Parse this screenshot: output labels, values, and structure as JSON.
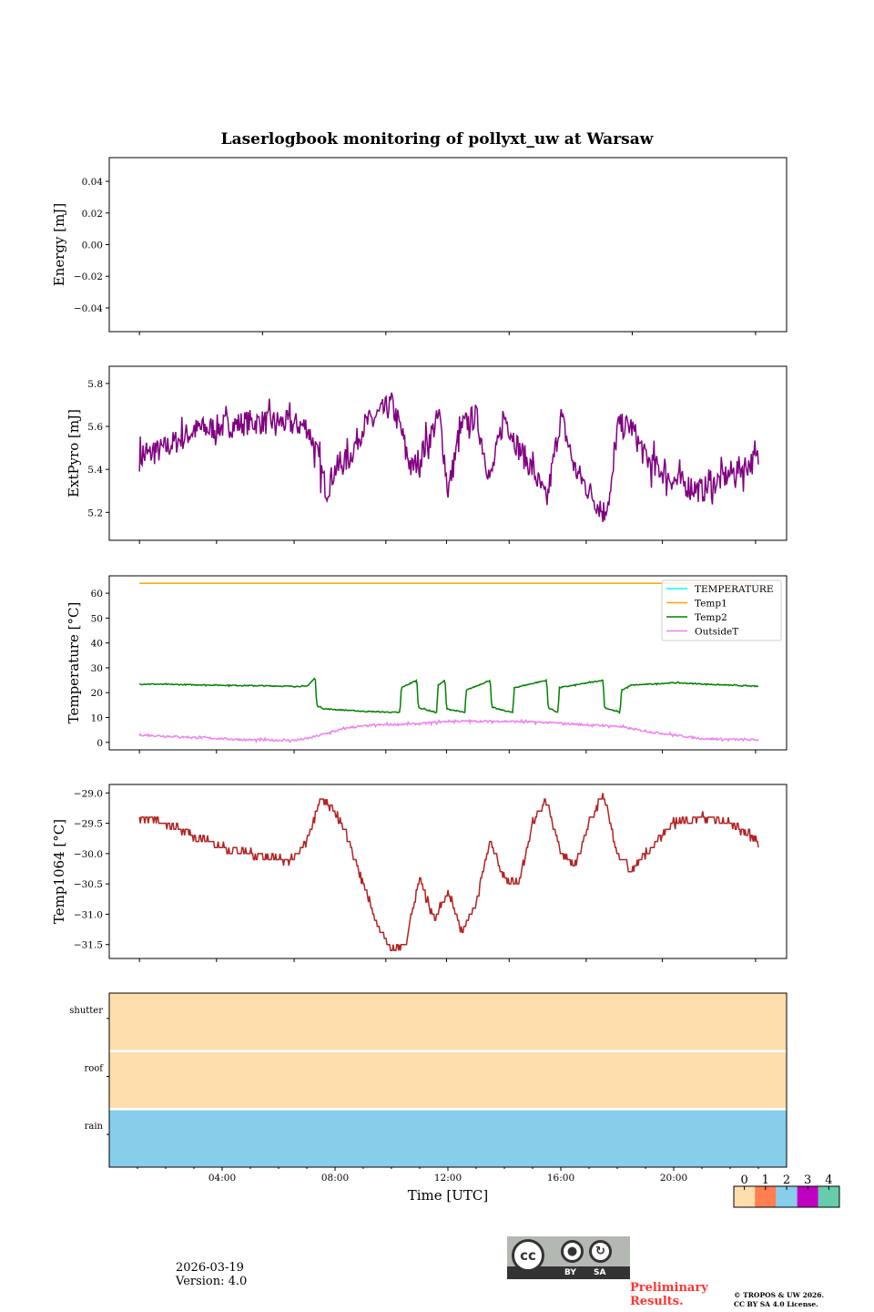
{
  "chart_data": {
    "title": "Laserlogbook monitoring of pollyxt_uw at Warsaw",
    "xlabel": "Time [UTC]",
    "x_unit": "hour of day (UTC)",
    "xlim": [
      0,
      24
    ],
    "xtick_labels": [
      "04:00",
      "08:00",
      "12:00",
      "16:00",
      "20:00"
    ],
    "panels": [
      {
        "type": "line",
        "ylabel": "Energy [mJ]",
        "ylim": [
          -0.055,
          0.055
        ],
        "ytick_labels": [
          "0.04",
          "0.02",
          "0.00",
          "−0.02",
          "−0.04"
        ],
        "yticks": [
          0.04,
          0.02,
          0,
          -0.02,
          -0.04
        ],
        "series": []
      },
      {
        "type": "line",
        "ylabel": "ExtPyro [mJ]",
        "ylim": [
          5.07,
          5.88
        ],
        "ytick_labels": [
          "5.8",
          "5.6",
          "5.4",
          "5.2"
        ],
        "yticks": [
          5.8,
          5.6,
          5.4,
          5.2
        ],
        "series": [
          {
            "name": "ExtPyro",
            "color": "#800080",
            "noise": 0.06,
            "x": [
              1.07,
              2,
              3,
              4,
              5,
              6,
              7,
              7.3,
              7.7,
              8,
              8.5,
              9,
              10,
              10.3,
              10.7,
              11,
              11.7,
              12,
              12.5,
              13,
              13.5,
              14,
              14.5,
              15,
              15.5,
              16,
              16.5,
              17,
              17.5,
              17.8,
              18,
              18.5,
              19,
              20,
              21,
              22,
              23
            ],
            "y": [
              5.45,
              5.5,
              5.58,
              5.6,
              5.62,
              5.62,
              5.6,
              5.5,
              5.3,
              5.4,
              5.45,
              5.6,
              5.7,
              5.6,
              5.4,
              5.45,
              5.65,
              5.3,
              5.6,
              5.65,
              5.35,
              5.65,
              5.5,
              5.4,
              5.25,
              5.65,
              5.4,
              5.3,
              5.2,
              5.3,
              5.6,
              5.6,
              5.45,
              5.35,
              5.3,
              5.38,
              5.45
            ]
          }
        ]
      },
      {
        "type": "line",
        "ylabel": "Temperature [°C]",
        "ylim": [
          -3,
          67
        ],
        "ytick_labels": [
          "60",
          "50",
          "40",
          "30",
          "20",
          "10",
          "0"
        ],
        "yticks": [
          60,
          50,
          40,
          30,
          20,
          10,
          0
        ],
        "legend_position": "top-right",
        "series": [
          {
            "name": "TEMPERATURE",
            "color": "#00ffff",
            "noise": 0,
            "x": [],
            "y": []
          },
          {
            "name": "Temp1",
            "color": "#ffa500",
            "noise": 0,
            "x": [
              1.07,
              23
            ],
            "y": [
              64,
              64
            ]
          },
          {
            "name": "Temp2",
            "color": "#008000",
            "noise": 0.2,
            "x": [
              1.07,
              4,
              7,
              7.3,
              7.35,
              7.6,
              9,
              10.3,
              10.35,
              10.9,
              10.95,
              11.6,
              11.65,
              11.9,
              11.95,
              12.6,
              12.65,
              13.5,
              13.55,
              14.3,
              14.35,
              15.5,
              15.55,
              15.9,
              15.95,
              17.5,
              17.55,
              18.1,
              18.15,
              18.5,
              20,
              23
            ],
            "y": [
              23.5,
              23,
              22.5,
              26,
              15,
              13.5,
              12.5,
              12,
              22,
              25,
              14,
              12,
              23,
              25,
              13.5,
              12,
              21,
              25,
              14,
              12,
              22,
              25,
              14,
              12,
              22,
              25,
              14,
              12,
              21,
              23,
              24,
              22.5
            ]
          },
          {
            "name": "OutsideT",
            "color": "#ee82ee",
            "noise": 0.4,
            "x": [
              1.07,
              3,
              5,
              6.5,
              7,
              7.5,
              8.5,
              9.5,
              11,
              12,
              14,
              15.5,
              17,
              18,
              19,
              20,
              21,
              22,
              23
            ],
            "y": [
              3,
              2,
              1,
              0.8,
              1.5,
              3,
              6,
              7,
              7.5,
              8.5,
              8.5,
              8,
              7,
              6.5,
              4.5,
              3,
              1.5,
              1.2,
              1
            ]
          }
        ]
      },
      {
        "type": "line",
        "ylabel": "Temp1064 [°C]",
        "ylim": [
          -31.73,
          -28.86
        ],
        "ytick_labels": [
          "−29.0",
          "−29.5",
          "−30.0",
          "−30.5",
          "−31.0",
          "−31.5"
        ],
        "yticks": [
          -29.0,
          -29.5,
          -30.0,
          -30.5,
          -31.0,
          -31.5
        ],
        "series": [
          {
            "name": "Temp1064",
            "color": "#b22222",
            "step": 0.1,
            "x": [
              1.07,
              2,
              3,
              4,
              5,
              6,
              6.5,
              7,
              7.5,
              8,
              8.5,
              9,
              9.5,
              10,
              10.5,
              11,
              11.5,
              12,
              12.5,
              13,
              13.5,
              14,
              14.5,
              15,
              15.5,
              16,
              16.5,
              17,
              17.5,
              18,
              18.5,
              19,
              20,
              21,
              22,
              23
            ],
            "y": [
              -29.4,
              -29.5,
              -29.7,
              -29.9,
              -30.0,
              -30.1,
              -30.1,
              -29.8,
              -29.1,
              -29.3,
              -29.8,
              -30.5,
              -31.2,
              -31.6,
              -31.5,
              -30.4,
              -31.1,
              -30.6,
              -31.3,
              -30.8,
              -29.8,
              -30.4,
              -30.5,
              -29.5,
              -29.1,
              -30.0,
              -30.2,
              -29.5,
              -29.0,
              -30.0,
              -30.3,
              -30.0,
              -29.5,
              -29.4,
              -29.5,
              -29.8
            ]
          }
        ]
      },
      {
        "type": "heatmap",
        "rows": [
          "shutter",
          "roof",
          "rain"
        ],
        "values": [
          0,
          0,
          2
        ],
        "colorbar": {
          "labels": [
            "0",
            "1",
            "2",
            "3",
            "4"
          ],
          "colors": [
            "#ffdead",
            "#ff7f50",
            "#87ceeb",
            "#c000c0",
            "#66cdaa"
          ]
        }
      }
    ]
  },
  "footer": {
    "date": "2026-03-19",
    "version": "Version: 4.0",
    "preliminary_line1": "Preliminary",
    "preliminary_line2": "Results.",
    "copyright_line1": "© TROPOS & UW 2026.",
    "copyright_line2": "CC BY SA 4.0 License.",
    "cc_by": "BY",
    "cc_sa": "SA",
    "cc_mark": "cc"
  }
}
